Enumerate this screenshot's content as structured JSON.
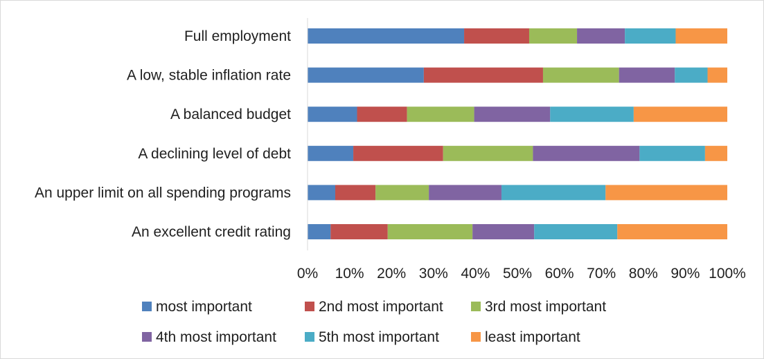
{
  "chart_data": {
    "type": "bar",
    "orientation": "horizontal",
    "stacked": "percent",
    "categories": [
      "Full employment",
      "A low, stable inflation rate",
      "A balanced budget",
      "A declining level of debt",
      "An upper limit on all spending programs",
      "An excellent credit rating"
    ],
    "series": [
      {
        "name": "most important",
        "color": "#4f81bd",
        "values": [
          37.3,
          27.7,
          11.8,
          10.9,
          6.6,
          5.5
        ]
      },
      {
        "name": "2nd most important",
        "color": "#c0504d",
        "values": [
          15.5,
          28.4,
          11.9,
          21.4,
          9.6,
          13.6
        ]
      },
      {
        "name": "3rd most important",
        "color": "#9bbb59",
        "values": [
          11.4,
          18.1,
          16.0,
          21.4,
          12.7,
          20.2
        ]
      },
      {
        "name": "4th most important",
        "color": "#8064a2",
        "values": [
          11.4,
          13.3,
          18.1,
          25.4,
          17.3,
          14.7
        ]
      },
      {
        "name": "5th most important",
        "color": "#4bacc6",
        "values": [
          12.1,
          7.8,
          19.9,
          15.6,
          24.8,
          19.8
        ]
      },
      {
        "name": "least important",
        "color": "#f79646",
        "values": [
          12.3,
          4.7,
          22.3,
          5.3,
          29.0,
          26.2
        ]
      }
    ],
    "xlim": [
      0,
      100
    ],
    "x_ticks": [
      "0%",
      "10%",
      "20%",
      "30%",
      "40%",
      "50%",
      "60%",
      "70%",
      "80%",
      "90%",
      "100%"
    ],
    "grid": false,
    "legend_position": "bottom"
  }
}
